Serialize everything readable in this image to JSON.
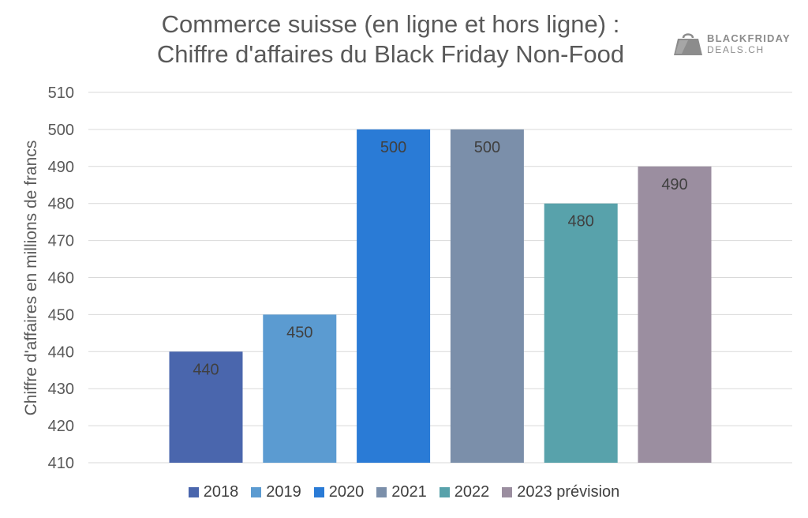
{
  "brand": {
    "line1": "BLACKFRIDAY",
    "line2": "DEALS.CH",
    "icon": "shopping-bag-icon"
  },
  "chart_data": {
    "type": "bar",
    "title": [
      "Commerce suisse (en ligne et hors ligne) :",
      "Chiffre d'affaires du Black Friday Non-Food"
    ],
    "ylabel": "Chiffre d'affaires en millions de francs",
    "xlabel": "",
    "ylim": [
      410,
      510
    ],
    "yticks": [
      410,
      420,
      430,
      440,
      450,
      460,
      470,
      480,
      490,
      500,
      510
    ],
    "grid": true,
    "legend_position": "bottom",
    "categories": [
      "2018",
      "2019",
      "2020",
      "2021",
      "2022",
      "2023 prévision"
    ],
    "values": [
      440,
      450,
      500,
      500,
      480,
      490
    ],
    "colors": [
      "#4a66ad",
      "#5b9bd1",
      "#2a7bd6",
      "#7b8faa",
      "#58a2ab",
      "#9b8ea0"
    ],
    "labels": [
      "440",
      "450",
      "500",
      "500",
      "480",
      "490"
    ]
  }
}
